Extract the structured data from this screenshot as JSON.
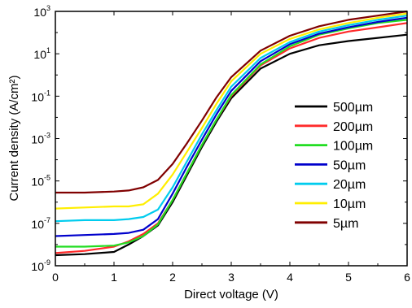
{
  "chart_data": {
    "type": "line",
    "xlabel": "Direct voltage (V)",
    "ylabel": "Current density (A/cm²)",
    "xlim": [
      0,
      6
    ],
    "ylim_log10": [
      -9,
      3
    ],
    "y_scale": "log",
    "x_ticks": [
      "0",
      "1",
      "2",
      "3",
      "4",
      "5",
      "6"
    ],
    "y_ticks": [
      {
        "base": "10",
        "exp": "-9",
        "value": -9
      },
      {
        "base": "10",
        "exp": "-7",
        "value": -7
      },
      {
        "base": "10",
        "exp": "-5",
        "value": -5
      },
      {
        "base": "10",
        "exp": "-3",
        "value": -3
      },
      {
        "base": "10",
        "exp": "-1",
        "value": -1
      },
      {
        "base": "10",
        "exp": "1",
        "value": 1
      },
      {
        "base": "10",
        "exp": "3",
        "value": 3
      }
    ],
    "legend_position": "right",
    "grid": false,
    "x": [
      0,
      0.5,
      1,
      1.25,
      1.5,
      1.75,
      2,
      2.25,
      2.5,
      2.75,
      3,
      3.5,
      4,
      4.5,
      5,
      5.5,
      6
    ],
    "series": [
      {
        "name": "500µm",
        "color": "#000000",
        "log10_values": [
          -8.5,
          -8.45,
          -8.35,
          -8.0,
          -7.6,
          -7.1,
          -6.0,
          -4.7,
          -3.4,
          -2.2,
          -1.1,
          0.3,
          1.0,
          1.4,
          1.6,
          1.75,
          1.9
        ]
      },
      {
        "name": "200µm",
        "color": "#ff2a2a",
        "log10_values": [
          -8.4,
          -8.3,
          -8.1,
          -7.85,
          -7.5,
          -7.0,
          -5.9,
          -4.6,
          -3.3,
          -2.1,
          -1.0,
          0.45,
          1.25,
          1.75,
          2.05,
          2.25,
          2.45
        ]
      },
      {
        "name": "100µm",
        "color": "#22dd22",
        "log10_values": [
          -8.1,
          -8.1,
          -8.05,
          -7.9,
          -7.6,
          -7.05,
          -5.9,
          -4.6,
          -3.3,
          -2.1,
          -0.95,
          0.5,
          1.35,
          1.9,
          2.2,
          2.45,
          2.6
        ]
      },
      {
        "name": "50µm",
        "color": "#0000cc",
        "log10_values": [
          -7.6,
          -7.55,
          -7.5,
          -7.45,
          -7.3,
          -6.8,
          -5.6,
          -4.3,
          -3.05,
          -1.85,
          -0.75,
          0.65,
          1.45,
          1.95,
          2.25,
          2.5,
          2.7
        ]
      },
      {
        "name": "20µm",
        "color": "#00ccee",
        "log10_values": [
          -6.9,
          -6.85,
          -6.85,
          -6.8,
          -6.7,
          -6.35,
          -5.3,
          -4.05,
          -2.8,
          -1.65,
          -0.55,
          0.8,
          1.55,
          2.05,
          2.35,
          2.6,
          2.8
        ]
      },
      {
        "name": "10µm",
        "color": "#ffee00",
        "log10_values": [
          -6.3,
          -6.25,
          -6.2,
          -6.2,
          -6.1,
          -5.6,
          -4.7,
          -3.6,
          -2.5,
          -1.35,
          -0.3,
          1.0,
          1.7,
          2.15,
          2.45,
          2.7,
          2.9
        ]
      },
      {
        "name": "5µm",
        "color": "#800000",
        "log10_values": [
          -5.55,
          -5.55,
          -5.5,
          -5.45,
          -5.3,
          -4.95,
          -4.2,
          -3.2,
          -2.15,
          -1.05,
          -0.1,
          1.15,
          1.85,
          2.3,
          2.6,
          2.8,
          3.0
        ]
      }
    ]
  }
}
